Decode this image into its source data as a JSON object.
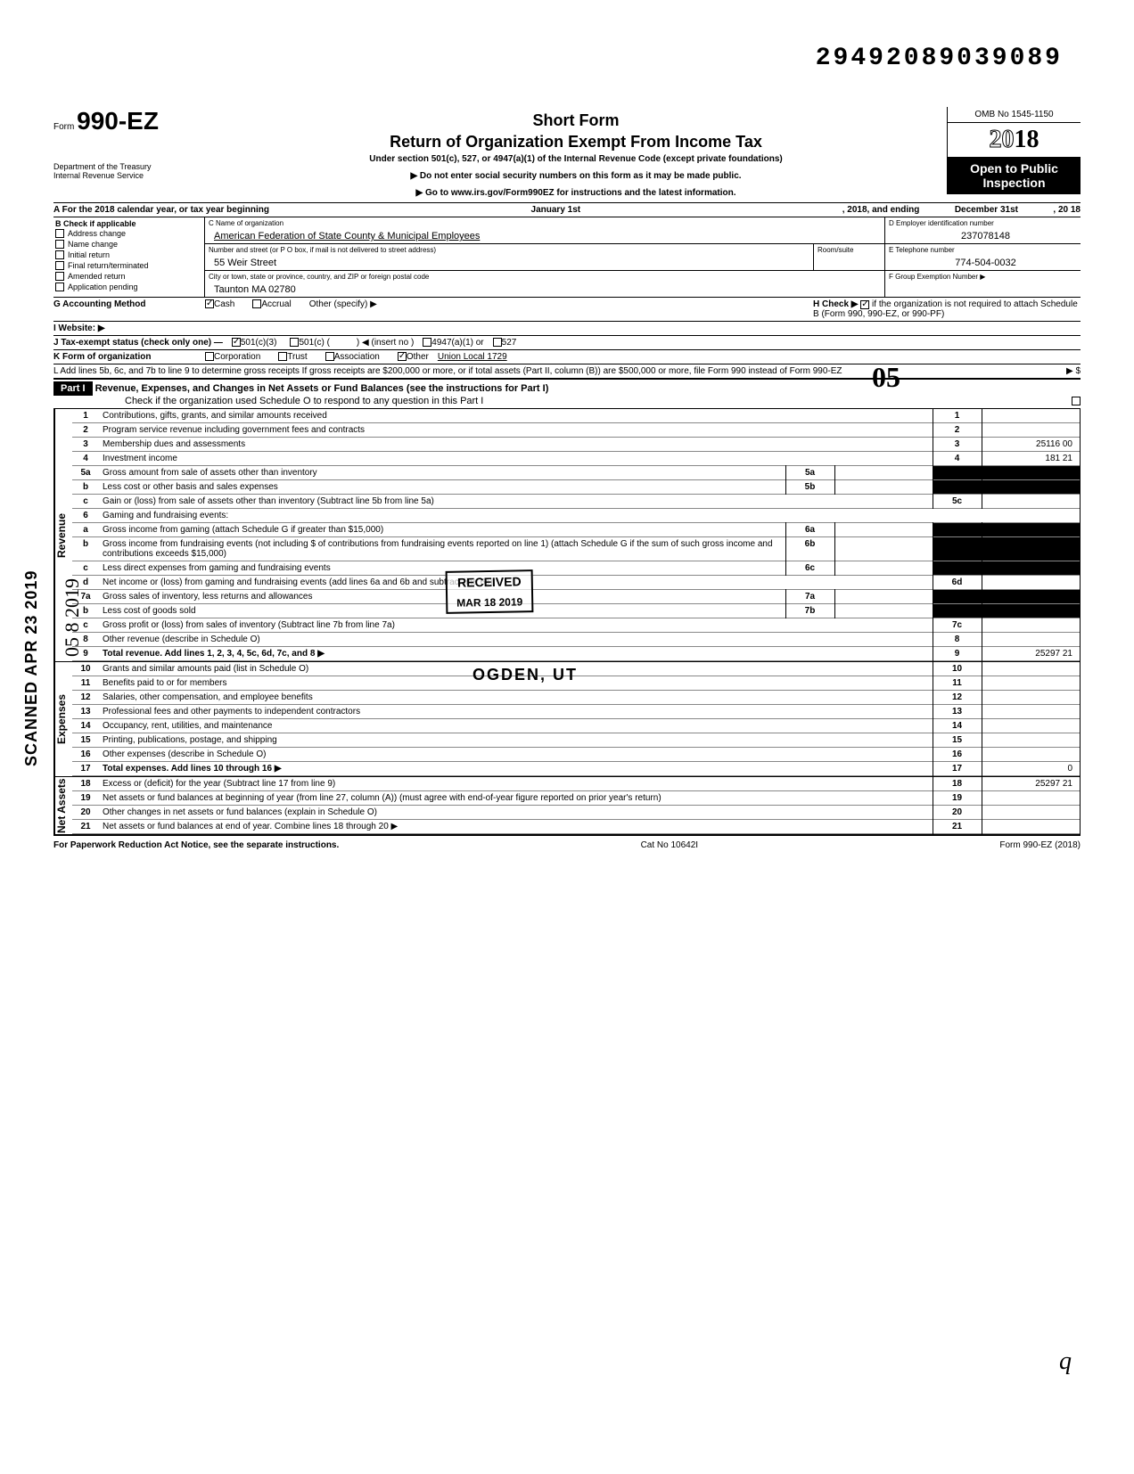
{
  "doc_id": "29492089039089",
  "form_number": "990-EZ",
  "form_prefix": "Form",
  "short_form": "Short Form",
  "main_title": "Return of Organization Exempt From Income Tax",
  "subtitle": "Under section 501(c), 527, or 4947(a)(1) of the Internal Revenue Code (except private foundations)",
  "ssn_warning": "▶ Do not enter social security numbers on this form as it may be made public.",
  "goto": "▶ Go to www.irs.gov/Form990EZ for instructions and the latest information.",
  "dept": "Department of the Treasury",
  "irs": "Internal Revenue Service",
  "omb": "OMB No 1545-1150",
  "year": "2018",
  "open_public": "Open to Public Inspection",
  "line_A": "A  For the 2018 calendar year, or tax year beginning",
  "tax_begin": "January 1st",
  "tax_mid": ", 2018, and ending",
  "tax_end": "December 31st",
  "tax_end2": ", 20    18",
  "B_label": "B  Check if applicable",
  "B_items": [
    "Address change",
    "Name change",
    "Initial return",
    "Final return/terminated",
    "Amended return",
    "Application pending"
  ],
  "C_label": "C Name of organization",
  "C_val": "American Federation of State County & Municipal Employees",
  "street_label": "Number and street (or P O  box, if mail is not delivered to street address)",
  "street_val": "55 Weir Street",
  "room_label": "Room/suite",
  "city_label": "City or town, state or province, country, and ZIP or foreign postal code",
  "city_val": "Taunton MA  02780",
  "D_label": "D Employer identification number",
  "D_val": "237078148",
  "E_label": "E Telephone number",
  "E_val": "774-504-0032",
  "F_label": "F Group Exemption Number ▶",
  "G": "G  Accounting Method",
  "G_cash": "Cash",
  "G_accrual": "Accrual",
  "G_other": "Other (specify) ▶",
  "H": "H  Check ▶",
  "H_text": "if the organization is not required to attach Schedule B (Form 990, 990-EZ, or 990-PF)",
  "I": "I   Website: ▶",
  "J": "J  Tax-exempt status (check only one) —",
  "J_501c3": "501(c)(3)",
  "J_501c": "501(c) (",
  "J_insert": ") ◀ (insert no )",
  "J_4947": "4947(a)(1) or",
  "J_527": "527",
  "K": "K  Form of organization",
  "K_corp": "Corporation",
  "K_trust": "Trust",
  "K_assoc": "Association",
  "K_other": "Other",
  "K_other_val": "Union Local 1729",
  "L": "L  Add lines 5b, 6c, and 7b to line 9 to determine gross receipts  If gross receipts are $200,000 or more, or if total assets (Part II, column (B)) are $500,000 or more, file Form 990 instead of Form 990-EZ",
  "L_arrow": "▶   $",
  "part1": "Part I",
  "part1_title": "Revenue, Expenses, and Changes in Net Assets or Fund Balances (see the instructions for Part I)",
  "part1_check": "Check if the organization used Schedule O to respond to any question in this Part I",
  "received": "RECEIVED",
  "received_date": "MAR 18 2019",
  "ogden": "OGDEN, UT",
  "scanned": "SCANNED  APR 23 2019",
  "big05": "05",
  "hand05": "05 8 2019",
  "lines": {
    "1": {
      "n": "1",
      "t": "Contributions, gifts, grants, and similar amounts received",
      "a": "1",
      "v": ""
    },
    "2": {
      "n": "2",
      "t": "Program service revenue including government fees and contracts",
      "a": "2",
      "v": ""
    },
    "3": {
      "n": "3",
      "t": "Membership dues and assessments",
      "a": "3",
      "v": "25116 00"
    },
    "4": {
      "n": "4",
      "t": "Investment income",
      "a": "4",
      "v": "181 21"
    },
    "5a": {
      "n": "5a",
      "t": "Gross amount from sale of assets other than inventory",
      "m": "5a"
    },
    "5b": {
      "n": "b",
      "t": "Less  cost or other basis and sales expenses",
      "m": "5b"
    },
    "5c": {
      "n": "c",
      "t": "Gain or (loss) from sale of assets other than inventory (Subtract line 5b from line 5a)",
      "a": "5c",
      "v": ""
    },
    "6": {
      "n": "6",
      "t": "Gaming and fundraising events:"
    },
    "6a": {
      "n": "a",
      "t": "Gross income from gaming (attach Schedule G if greater than $15,000)",
      "m": "6a"
    },
    "6b": {
      "n": "b",
      "t": "Gross income from fundraising events (not including  $                          of contributions from fundraising events reported on line 1) (attach Schedule G if the sum of such gross income and contributions exceeds $15,000)",
      "m": "6b"
    },
    "6c": {
      "n": "c",
      "t": "Less  direct expenses from gaming and fundraising events",
      "m": "6c"
    },
    "6d": {
      "n": "d",
      "t": "Net income or (loss) from gaming and fundraising events (add lines 6a and 6b and subtract line 6c)",
      "a": "6d",
      "v": ""
    },
    "7a": {
      "n": "7a",
      "t": "Gross sales of inventory, less returns and allowances",
      "m": "7a"
    },
    "7b": {
      "n": "b",
      "t": "Less  cost of goods sold",
      "m": "7b"
    },
    "7c": {
      "n": "c",
      "t": "Gross profit or (loss) from sales of inventory (Subtract line 7b from line 7a)",
      "a": "7c",
      "v": ""
    },
    "8": {
      "n": "8",
      "t": "Other revenue (describe in Schedule O)",
      "a": "8",
      "v": ""
    },
    "9": {
      "n": "9",
      "t": "Total revenue. Add lines 1, 2, 3, 4, 5c, 6d, 7c, and 8",
      "a": "9",
      "v": "25297 21",
      "bold": true,
      "arrow": true
    },
    "10": {
      "n": "10",
      "t": "Grants and similar amounts paid (list in Schedule O)",
      "a": "10",
      "v": ""
    },
    "11": {
      "n": "11",
      "t": "Benefits paid to or for members",
      "a": "11",
      "v": ""
    },
    "12": {
      "n": "12",
      "t": "Salaries, other compensation, and employee benefits",
      "a": "12",
      "v": ""
    },
    "13": {
      "n": "13",
      "t": "Professional fees and other payments to independent contractors",
      "a": "13",
      "v": ""
    },
    "14": {
      "n": "14",
      "t": "Occupancy, rent, utilities, and maintenance",
      "a": "14",
      "v": ""
    },
    "15": {
      "n": "15",
      "t": "Printing, publications, postage, and shipping",
      "a": "15",
      "v": ""
    },
    "16": {
      "n": "16",
      "t": "Other expenses (describe in Schedule O)",
      "a": "16",
      "v": ""
    },
    "17": {
      "n": "17",
      "t": "Total expenses. Add lines 10 through 16",
      "a": "17",
      "v": "0",
      "bold": true,
      "arrow": true
    },
    "18": {
      "n": "18",
      "t": "Excess or (deficit) for the year (Subtract line 17 from line 9)",
      "a": "18",
      "v": "25297 21"
    },
    "19": {
      "n": "19",
      "t": "Net assets or fund balances at beginning of year (from line 27, column (A)) (must agree with end-of-year figure reported on prior year's return)",
      "a": "19",
      "v": ""
    },
    "20": {
      "n": "20",
      "t": "Other changes in net assets or fund balances (explain in Schedule O)",
      "a": "20",
      "v": ""
    },
    "21": {
      "n": "21",
      "t": "Net assets or fund balances at end of year. Combine lines 18 through 20",
      "a": "21",
      "v": "",
      "arrow": true
    }
  },
  "vert_labels": {
    "rev": "Revenue",
    "exp": "Expenses",
    "na": "Net Assets"
  },
  "footer_left": "For Paperwork Reduction Act Notice, see the separate instructions.",
  "footer_mid": "Cat  No  10642I",
  "footer_right": "Form 990-EZ (2018)",
  "bottom_q": "q"
}
